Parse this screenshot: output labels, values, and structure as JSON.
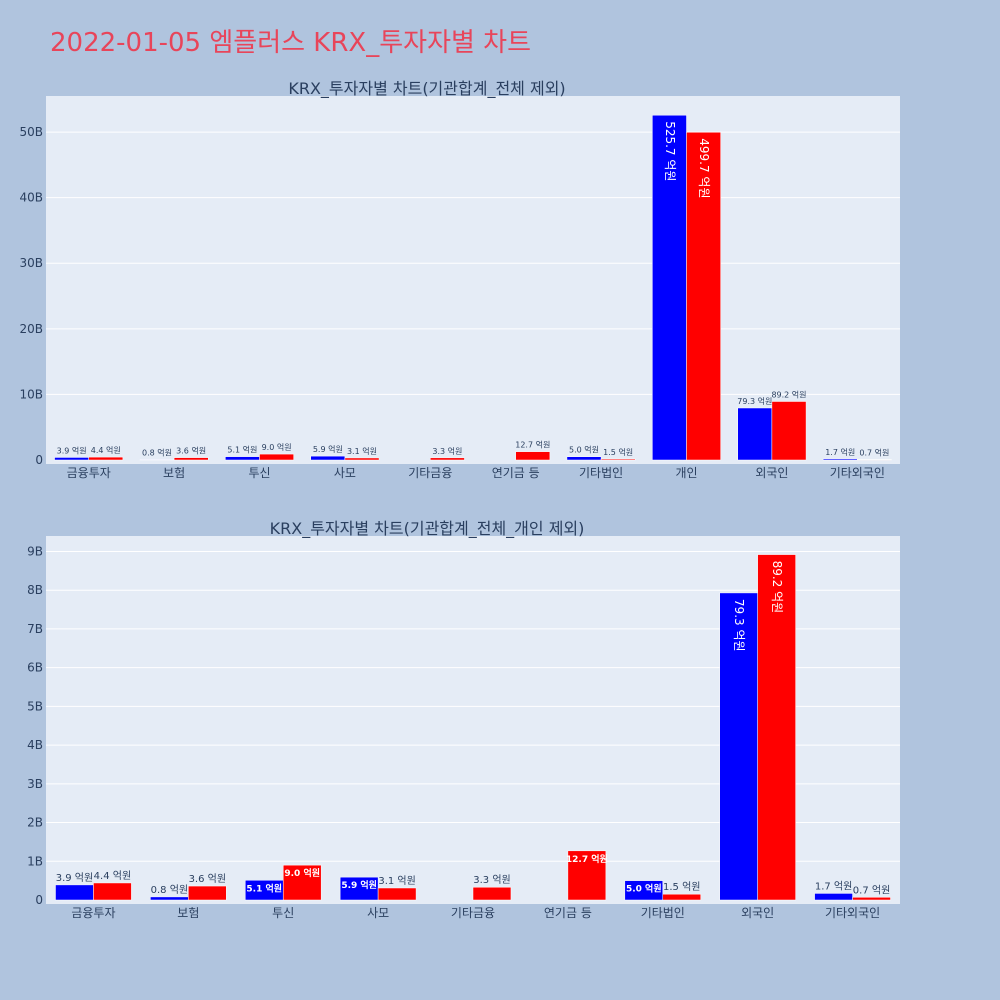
{
  "page_title": "2022-01-05 엠플러스 KRX_투자자별 차트",
  "colors": {
    "series_a": "#0000ff",
    "series_b": "#ff0000",
    "plot_bg": "#e5ecf6",
    "page_bg": "#b0c4de",
    "title": "#e8455a"
  },
  "chart_data": [
    {
      "type": "bar",
      "title": "KRX_투자자별 차트(기관합계_전체 제외)",
      "categories": [
        "금융투자",
        "보험",
        "투신",
        "사모",
        "기타금융",
        "연기금 등",
        "기타법인",
        "개인",
        "외국인",
        "기타외국인"
      ],
      "series": [
        {
          "color": "#0000ff",
          "values": [
            390000000,
            80000000,
            510000000,
            590000000,
            null,
            null,
            500000000,
            52570000000,
            7930000000,
            170000000
          ],
          "labels": [
            "3.9 억원",
            "0.8 억원",
            "5.1 억원",
            "5.9 억원",
            "",
            "",
            "5.0 억원",
            "525.7 억원",
            "79.3 억원",
            "1.7 억원"
          ]
        },
        {
          "color": "#ff0000",
          "values": [
            440000000,
            360000000,
            900000000,
            310000000,
            330000000,
            1270000000,
            150000000,
            49970000000,
            8920000000,
            70000000
          ],
          "labels": [
            "4.4 억원",
            "3.6 억원",
            "9.0 억원",
            "3.1 억원",
            "3.3 억원",
            "12.7 억원",
            "1.5 억원",
            "499.7 억원",
            "89.2 억원",
            "0.7 억원"
          ]
        }
      ],
      "yticks": [
        0,
        10000000000,
        20000000000,
        30000000000,
        40000000000,
        50000000000
      ],
      "ytick_labels": [
        "0",
        "10B",
        "20B",
        "30B",
        "40B",
        "50B"
      ],
      "ylim": [
        0,
        55500000000
      ],
      "grid": true
    },
    {
      "type": "bar",
      "title": "KRX_투자자별 차트(기관합계_전체_개인 제외)",
      "categories": [
        "금융투자",
        "보험",
        "투신",
        "사모",
        "기타금융",
        "연기금 등",
        "기타법인",
        "외국인",
        "기타외국인"
      ],
      "series": [
        {
          "color": "#0000ff",
          "values": [
            390000000,
            80000000,
            510000000,
            590000000,
            null,
            null,
            500000000,
            7930000000,
            170000000
          ],
          "labels": [
            "3.9 억원",
            "0.8 억원",
            "5.1 억원",
            "5.9 억원",
            "",
            "",
            "5.0 억원",
            "79.3 억원",
            "1.7 억원"
          ]
        },
        {
          "color": "#ff0000",
          "values": [
            440000000,
            360000000,
            900000000,
            310000000,
            330000000,
            1270000000,
            150000000,
            8920000000,
            70000000
          ],
          "labels": [
            "4.4 억원",
            "3.6 억원",
            "9.0 억원",
            "3.1 억원",
            "3.3 억원",
            "12.7 억원",
            "1.5 억원",
            "89.2 억원",
            "0.7 억원"
          ]
        }
      ],
      "yticks": [
        0,
        1000000000,
        2000000000,
        3000000000,
        4000000000,
        5000000000,
        6000000000,
        7000000000,
        8000000000,
        9000000000
      ],
      "ytick_labels": [
        "0",
        "1B",
        "2B",
        "3B",
        "4B",
        "5B",
        "6B",
        "7B",
        "8B",
        "9B"
      ],
      "ylim": [
        0,
        9400000000
      ],
      "grid": true
    }
  ]
}
